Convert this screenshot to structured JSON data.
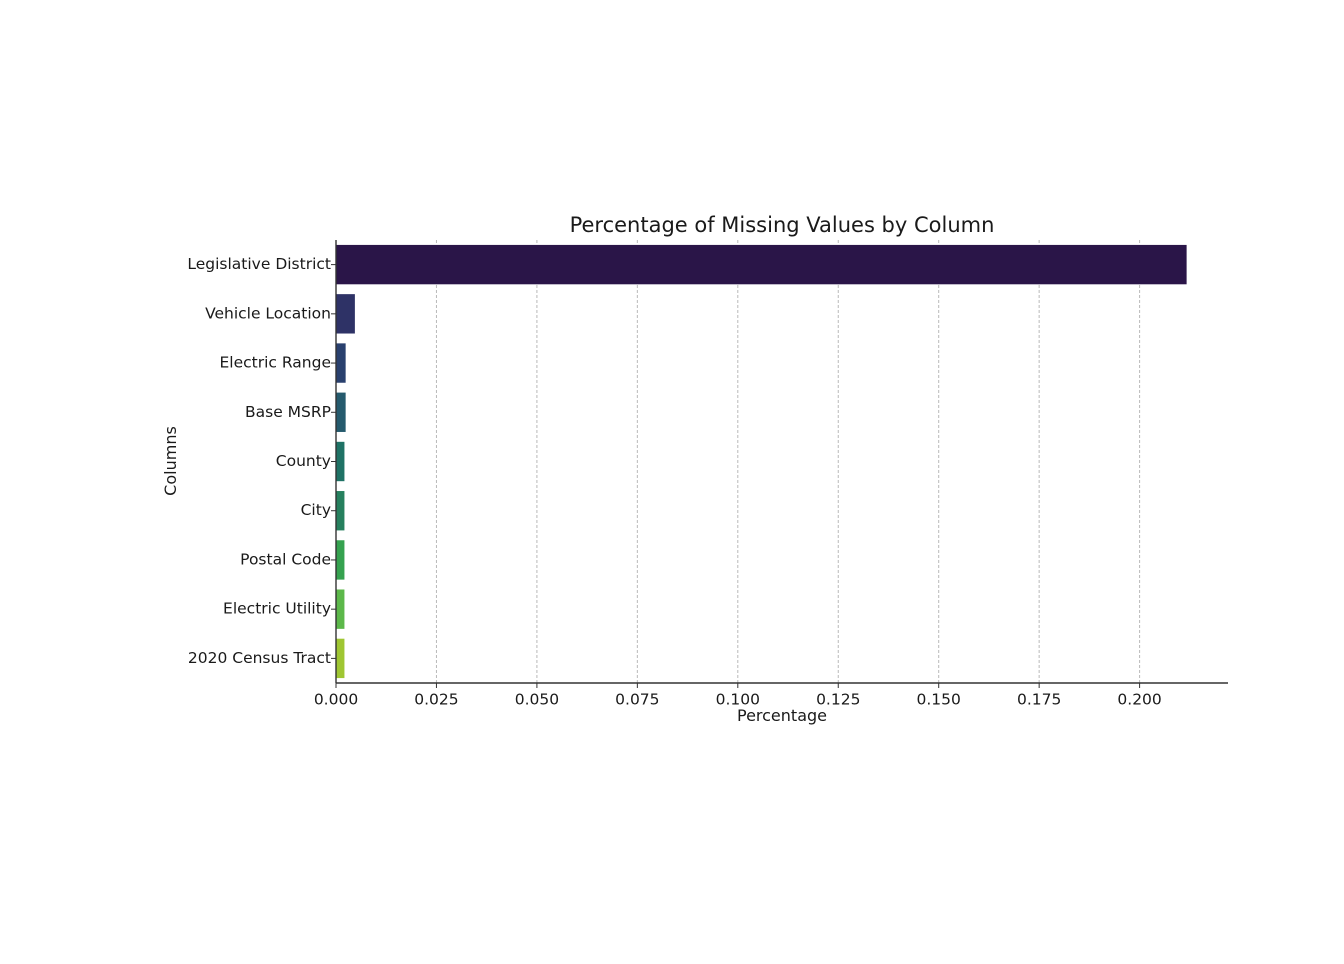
{
  "chart_data": {
    "type": "bar",
    "orientation": "horizontal",
    "title": "Percentage of Missing Values by Column",
    "xlabel": "Percentage",
    "ylabel": "Columns",
    "categories": [
      "Legislative District",
      "Vehicle Location",
      "Electric Range",
      "Base MSRP",
      "County",
      "City",
      "Postal Code",
      "Electric Utility",
      "2020 Census Tract"
    ],
    "values": [
      0.2117,
      0.0047,
      0.0024,
      0.0024,
      0.0021,
      0.0021,
      0.0021,
      0.0021,
      0.0021
    ],
    "colors": [
      "#2a1548",
      "#2e3266",
      "#29406e",
      "#255a6d",
      "#1f7265",
      "#26805e",
      "#35a24f",
      "#5cb84a",
      "#9fc632"
    ],
    "xlim": [
      0,
      0.222
    ],
    "xticks": [
      0.0,
      0.025,
      0.05,
      0.075,
      0.1,
      0.125,
      0.15,
      0.175,
      0.2
    ],
    "xtick_labels": [
      "0.000",
      "0.025",
      "0.050",
      "0.075",
      "0.100",
      "0.125",
      "0.150",
      "0.175",
      "0.200"
    ],
    "grid": "x-dashed",
    "legend": "none"
  }
}
